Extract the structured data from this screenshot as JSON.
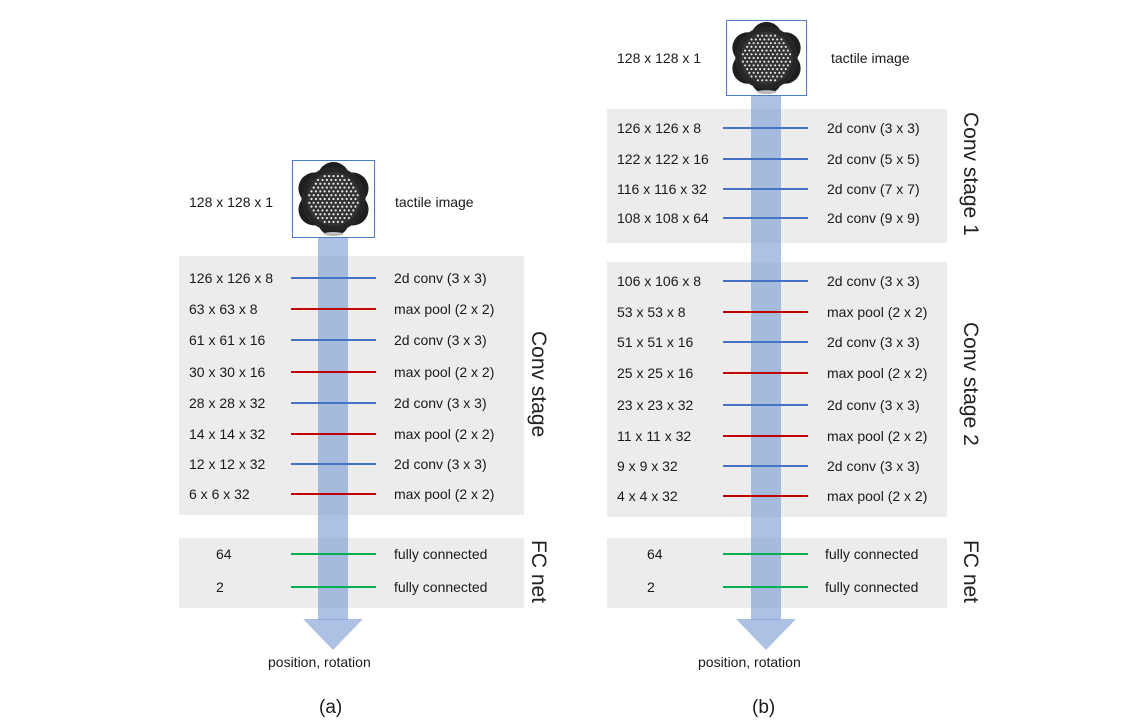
{
  "colors": {
    "conv": "#4472c4",
    "pool": "#c00000",
    "fc": "#00b050",
    "arrow": "#7a9bd4",
    "panel": "#ececec"
  },
  "a": {
    "input_dim": "128 x 128 x 1",
    "input_label": "tactile image",
    "conv_stage_label": "Conv stage",
    "conv_layers": [
      {
        "dim": "126 x 126 x 8",
        "op": "2d conv (3 x 3)",
        "kind": "conv"
      },
      {
        "dim": "63 x 63 x 8",
        "op": "max pool (2 x 2)",
        "kind": "pool"
      },
      {
        "dim": "61 x 61 x 16",
        "op": "2d conv (3 x 3)",
        "kind": "conv"
      },
      {
        "dim": "30 x 30 x 16",
        "op": "max pool (2 x 2)",
        "kind": "pool"
      },
      {
        "dim": "28 x 28 x 32",
        "op": "2d conv (3 x 3)",
        "kind": "conv"
      },
      {
        "dim": "14 x 14 x 32",
        "op": "max pool (2 x 2)",
        "kind": "pool"
      },
      {
        "dim": "12 x 12 x 32",
        "op": "2d conv (3 x 3)",
        "kind": "conv"
      },
      {
        "dim": "6 x 6 x 32",
        "op": "max pool (2 x 2)",
        "kind": "pool"
      }
    ],
    "fc_label": "FC net",
    "fc_layers": [
      {
        "dim": "64",
        "op": "fully connected"
      },
      {
        "dim": "2",
        "op": "fully connected"
      }
    ],
    "output": "position, rotation",
    "caption": "(a)"
  },
  "b": {
    "input_dim": "128 x 128 x 1",
    "input_label": "tactile image",
    "stage1_label": "Conv stage 1",
    "stage1_layers": [
      {
        "dim": "126 x 126 x 8",
        "op": "2d conv (3 x 3)",
        "kind": "conv"
      },
      {
        "dim": "122 x 122 x 16",
        "op": "2d conv (5 x 5)",
        "kind": "conv"
      },
      {
        "dim": "116 x 116 x 32",
        "op": "2d conv (7 x 7)",
        "kind": "conv"
      },
      {
        "dim": "108 x 108 x 64",
        "op": "2d conv (9 x 9)",
        "kind": "conv"
      }
    ],
    "stage2_label": "Conv stage 2",
    "stage2_layers": [
      {
        "dim": "106 x 106 x 8",
        "op": "2d conv (3 x 3)",
        "kind": "conv"
      },
      {
        "dim": "53 x 53 x 8",
        "op": "max pool (2 x 2)",
        "kind": "pool"
      },
      {
        "dim": "51 x 51 x 16",
        "op": "2d conv (3 x 3)",
        "kind": "conv"
      },
      {
        "dim": "25 x 25 x 16",
        "op": "max pool (2 x 2)",
        "kind": "pool"
      },
      {
        "dim": "23 x 23 x 32",
        "op": "2d conv (3 x 3)",
        "kind": "conv"
      },
      {
        "dim": "11 x 11 x 32",
        "op": "max pool (2 x 2)",
        "kind": "pool"
      },
      {
        "dim": "9 x 9 x 32",
        "op": "2d conv (3 x 3)",
        "kind": "conv"
      },
      {
        "dim": "4 x 4 x 32",
        "op": "max pool (2 x 2)",
        "kind": "pool"
      }
    ],
    "fc_label": "FC net",
    "fc_layers": [
      {
        "dim": "64",
        "op": "fully connected"
      },
      {
        "dim": "2",
        "op": "fully connected"
      }
    ],
    "output": "position, rotation",
    "caption": "(b)"
  }
}
